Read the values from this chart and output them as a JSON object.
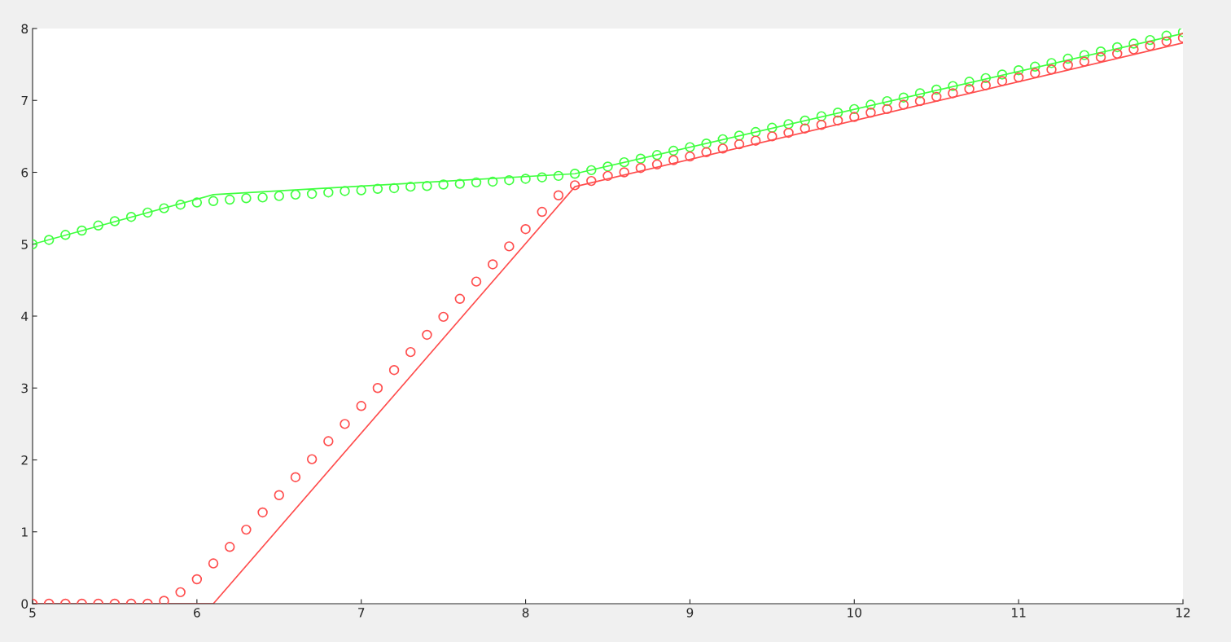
{
  "chart_data": {
    "type": "line",
    "xlim": [
      5,
      12
    ],
    "ylim": [
      0,
      8
    ],
    "xticks": [
      5,
      6,
      7,
      8,
      9,
      10,
      11,
      12
    ],
    "yticks": [
      0,
      1,
      2,
      3,
      4,
      5,
      6,
      7,
      8
    ],
    "grid": false,
    "legend": false,
    "series": [
      {
        "color": "#40ff40",
        "marker": "none",
        "x": [
          5,
          6.1,
          8.3,
          12
        ],
        "values": [
          5.0,
          5.69,
          5.98,
          7.93
        ]
      },
      {
        "color": "#ff4d4d",
        "marker": "none",
        "x": [
          5,
          6.1,
          8.3,
          12
        ],
        "values": [
          0,
          0,
          5.8,
          7.8
        ]
      },
      {
        "type": "scatter",
        "color": "#40ff40",
        "marker": "circle",
        "x": [
          5.0,
          5.1,
          5.2,
          5.3,
          5.4,
          5.5,
          5.6,
          5.7,
          5.8,
          5.9,
          6.0,
          6.1,
          6.2,
          6.3,
          6.4,
          6.5,
          6.6,
          6.7,
          6.8,
          6.9,
          7.0,
          7.1,
          7.2,
          7.3,
          7.4,
          7.5,
          7.6,
          7.7,
          7.8,
          7.9,
          8.0,
          8.1,
          8.2,
          8.3,
          8.4,
          8.5,
          8.6,
          8.7,
          8.8,
          8.9,
          9.0,
          9.1,
          9.2,
          9.3,
          9.4,
          9.5,
          9.6,
          9.7,
          9.8,
          9.9,
          10.0,
          10.1,
          10.2,
          10.3,
          10.4,
          10.5,
          10.6,
          10.7,
          10.8,
          10.9,
          11.0,
          11.1,
          11.2,
          11.3,
          11.4,
          11.5,
          11.6,
          11.7,
          11.8,
          11.9,
          12.0
        ],
        "values": [
          5.0,
          5.06,
          5.13,
          5.19,
          5.26,
          5.32,
          5.38,
          5.44,
          5.5,
          5.55,
          5.58,
          5.6,
          5.62,
          5.64,
          5.65,
          5.67,
          5.69,
          5.7,
          5.72,
          5.74,
          5.75,
          5.77,
          5.78,
          5.8,
          5.81,
          5.83,
          5.84,
          5.86,
          5.87,
          5.89,
          5.91,
          5.93,
          5.95,
          5.98,
          6.03,
          6.08,
          6.14,
          6.19,
          6.24,
          6.3,
          6.35,
          6.4,
          6.46,
          6.51,
          6.56,
          6.62,
          6.67,
          6.72,
          6.78,
          6.83,
          6.88,
          6.94,
          6.99,
          7.04,
          7.1,
          7.15,
          7.2,
          7.26,
          7.31,
          7.36,
          7.42,
          7.47,
          7.52,
          7.58,
          7.63,
          7.68,
          7.74,
          7.79,
          7.84,
          7.9,
          7.95
        ]
      },
      {
        "type": "scatter",
        "color": "#ff4d4d",
        "marker": "circle",
        "x": [
          5.0,
          5.1,
          5.2,
          5.3,
          5.4,
          5.5,
          5.6,
          5.7,
          5.8,
          5.9,
          6.0,
          6.1,
          6.2,
          6.3,
          6.4,
          6.5,
          6.6,
          6.7,
          6.8,
          6.9,
          7.0,
          7.1,
          7.2,
          7.3,
          7.4,
          7.5,
          7.6,
          7.7,
          7.8,
          7.9,
          8.0,
          8.1,
          8.2,
          8.3,
          8.4,
          8.5,
          8.6,
          8.7,
          8.8,
          8.9,
          9.0,
          9.1,
          9.2,
          9.3,
          9.4,
          9.5,
          9.6,
          9.7,
          9.8,
          9.9,
          10.0,
          10.1,
          10.2,
          10.3,
          10.4,
          10.5,
          10.6,
          10.7,
          10.8,
          10.9,
          11.0,
          11.1,
          11.2,
          11.3,
          11.4,
          11.5,
          11.6,
          11.7,
          11.8,
          11.9,
          12.0
        ],
        "values": [
          0,
          0,
          0,
          0,
          0,
          0,
          0,
          0,
          0.04,
          0.16,
          0.34,
          0.56,
          0.79,
          1.03,
          1.27,
          1.51,
          1.76,
          2.01,
          2.26,
          2.5,
          2.75,
          3.0,
          3.25,
          3.5,
          3.74,
          3.99,
          4.24,
          4.48,
          4.72,
          4.97,
          5.21,
          5.45,
          5.68,
          5.82,
          5.88,
          5.95,
          6.0,
          6.06,
          6.11,
          6.17,
          6.22,
          6.28,
          6.33,
          6.39,
          6.44,
          6.5,
          6.55,
          6.61,
          6.66,
          6.72,
          6.77,
          6.83,
          6.88,
          6.94,
          6.99,
          7.05,
          7.1,
          7.16,
          7.21,
          7.27,
          7.32,
          7.38,
          7.43,
          7.49,
          7.54,
          7.6,
          7.65,
          7.71,
          7.76,
          7.82,
          7.87
        ]
      }
    ]
  }
}
